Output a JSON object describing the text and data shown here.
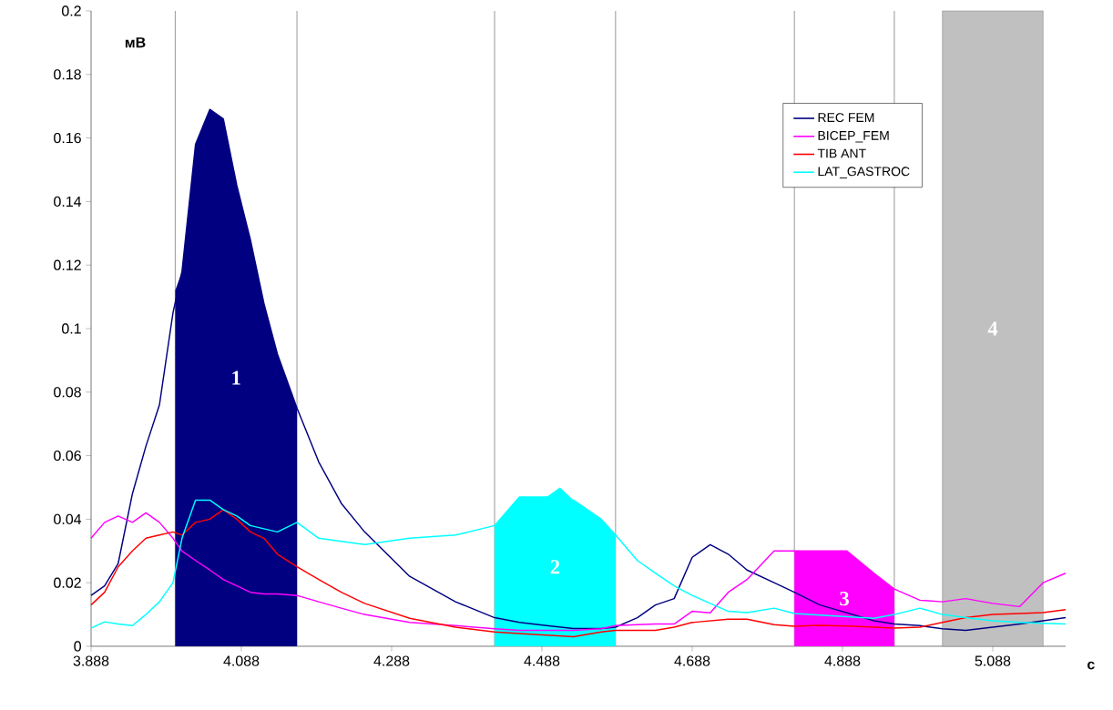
{
  "chart_data": {
    "type": "line",
    "xlabel": "с",
    "ylabel": "мВ",
    "x": [
      3.888,
      3.906,
      3.924,
      3.943,
      3.961,
      3.979,
      3.997,
      4.009,
      4.027,
      4.046,
      4.064,
      4.082,
      4.1,
      4.118,
      4.136,
      4.162,
      4.191,
      4.221,
      4.252,
      4.312,
      4.373,
      4.425,
      4.458,
      4.494,
      4.53,
      4.567,
      4.586,
      4.615,
      4.639,
      4.664,
      4.688,
      4.712,
      4.736,
      4.761,
      4.797,
      4.824,
      4.858,
      4.894,
      4.93,
      4.957,
      4.991,
      5.021,
      5.052,
      5.088,
      5.124,
      5.155,
      5.185
    ],
    "series": [
      {
        "type": "area",
        "color": "#000080",
        "x": [
          4.0,
          4.009,
          4.027,
          4.046,
          4.064,
          4.082,
          4.1,
          4.118,
          4.136,
          4.162
        ],
        "values": [
          0.112,
          0.118,
          0.158,
          0.169,
          0.166,
          0.145,
          0.128,
          0.108,
          0.092,
          0.075
        ]
      },
      {
        "type": "area",
        "color": "#00ffff",
        "x": [
          4.425,
          4.458,
          4.494,
          4.512,
          4.53,
          4.567,
          4.586
        ],
        "values": [
          0.038,
          0.047,
          0.047,
          0.05,
          0.046,
          0.04,
          0.035
        ]
      },
      {
        "type": "area",
        "color": "#ff00ff",
        "x": [
          4.824,
          4.858,
          4.894,
          4.93,
          4.957
        ],
        "values": [
          0.03,
          0.03,
          0.03,
          0.023,
          0.018
        ]
      },
      {
        "name": "REC FEM",
        "color": "#000080",
        "values": [
          0.016,
          0.019,
          0.026,
          0.048,
          0.063,
          0.076,
          0.105,
          0.118,
          0.158,
          0.169,
          0.166,
          0.145,
          0.128,
          0.108,
          0.092,
          0.075,
          0.058,
          0.045,
          0.036,
          0.022,
          0.014,
          0.009,
          0.0075,
          0.0065,
          0.0056,
          0.0056,
          0.006,
          0.009,
          0.013,
          0.015,
          0.028,
          0.032,
          0.029,
          0.024,
          0.02,
          0.017,
          0.013,
          0.0105,
          0.008,
          0.007,
          0.0065,
          0.0055,
          0.005,
          0.006,
          0.007,
          0.008,
          0.009
        ]
      },
      {
        "name": "BICEP_FEM",
        "color": "#ff00ff",
        "values": [
          0.034,
          0.039,
          0.041,
          0.039,
          0.042,
          0.039,
          0.034,
          0.03,
          0.027,
          0.024,
          0.021,
          0.019,
          0.017,
          0.0165,
          0.0165,
          0.016,
          0.014,
          0.012,
          0.01,
          0.0075,
          0.0065,
          0.0055,
          0.005,
          0.005,
          0.005,
          0.0055,
          0.0065,
          0.0068,
          0.007,
          0.007,
          0.011,
          0.0105,
          0.017,
          0.021,
          0.03,
          0.03,
          0.03,
          0.03,
          0.023,
          0.018,
          0.0145,
          0.014,
          0.015,
          0.0135,
          0.0125,
          0.02,
          0.023
        ]
      },
      {
        "name": "TIB ANT",
        "color": "#ff0000",
        "values": [
          0.013,
          0.017,
          0.025,
          0.03,
          0.034,
          0.035,
          0.036,
          0.035,
          0.039,
          0.04,
          0.043,
          0.04,
          0.036,
          0.034,
          0.029,
          0.025,
          0.021,
          0.017,
          0.0135,
          0.0088,
          0.006,
          0.0045,
          0.004,
          0.0035,
          0.003,
          0.0045,
          0.005,
          0.005,
          0.005,
          0.006,
          0.0075,
          0.008,
          0.0085,
          0.0085,
          0.0068,
          0.0063,
          0.0066,
          0.0064,
          0.006,
          0.0057,
          0.006,
          0.0075,
          0.009,
          0.01,
          0.0103,
          0.0106,
          0.0115
        ]
      },
      {
        "name": "LAT_GASTROC",
        "color": "#00ffff",
        "values": [
          0.0057,
          0.0077,
          0.007,
          0.0065,
          0.01,
          0.014,
          0.02,
          0.034,
          0.046,
          0.046,
          0.043,
          0.041,
          0.038,
          0.037,
          0.036,
          0.039,
          0.034,
          0.033,
          0.032,
          0.034,
          0.035,
          0.038,
          0.047,
          0.047,
          0.046,
          0.04,
          0.035,
          0.027,
          0.023,
          0.019,
          0.016,
          0.0135,
          0.011,
          0.0106,
          0.012,
          0.0103,
          0.0098,
          0.0093,
          0.0088,
          0.01,
          0.012,
          0.01,
          0.009,
          0.008,
          0.0075,
          0.0072,
          0.007
        ]
      }
    ],
    "xlim": [
      3.888,
      5.185
    ],
    "ylim": [
      0,
      0.2
    ],
    "xticks": [
      3.888,
      4.088,
      4.288,
      4.488,
      4.688,
      4.888,
      5.088
    ],
    "yticks": [
      0,
      0.02,
      0.04,
      0.06,
      0.08,
      0.1,
      0.12,
      0.14,
      0.16,
      0.18,
      0.2
    ],
    "ref_lines": [
      {
        "axis": "x",
        "value": 4.0,
        "color": "#808080"
      },
      {
        "axis": "x",
        "value": 4.162,
        "color": "#808080"
      },
      {
        "axis": "x",
        "value": 4.425,
        "color": "#808080"
      },
      {
        "axis": "x",
        "value": 4.586,
        "color": "#808080"
      },
      {
        "axis": "x",
        "value": 4.824,
        "color": "#808080"
      },
      {
        "axis": "x",
        "value": 4.957,
        "color": "#808080"
      }
    ],
    "bands": [
      {
        "axis": "x",
        "from": 5.021,
        "to": 5.155,
        "label": "4",
        "color": "#c0c0c0"
      }
    ],
    "annotations": [
      "1",
      "2",
      "3"
    ],
    "legend": "top right",
    "grid": false,
    "marker": "none",
    "line_style": "solid"
  }
}
